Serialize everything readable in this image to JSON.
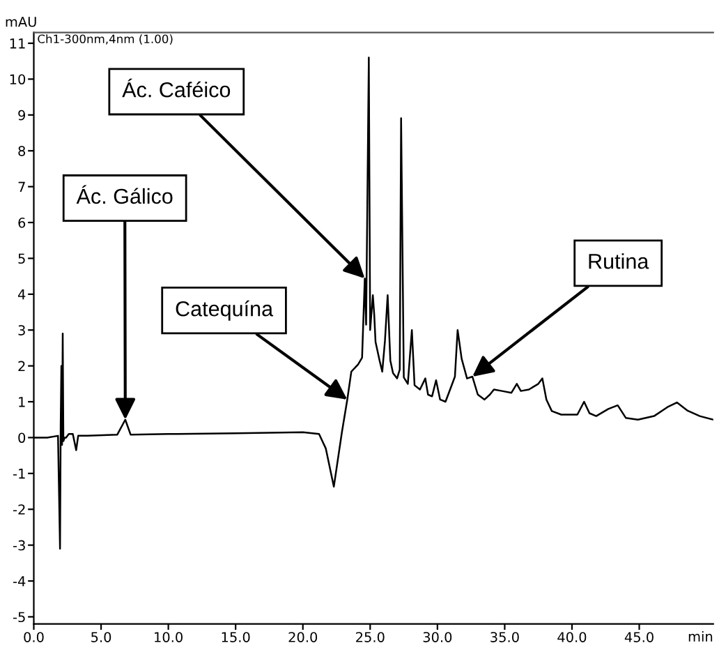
{
  "chart_data": {
    "type": "line",
    "xlabel": "min",
    "ylabel": "mAU",
    "annotations": [
      "Ch1-300nm,4nm (1.00)",
      {
        "text": "Ác. Caféico",
        "x": 24.6,
        "y": 4.44
      },
      {
        "text": "Ác. Gálico",
        "x": 6.8,
        "y": 0.5
      },
      {
        "text": "Catequína",
        "x": 23.3,
        "y": 1.06
      },
      {
        "text": "Rutina",
        "x": 32.6,
        "y": 1.7
      }
    ],
    "series": [
      {
        "color": "#000000",
        "x": [
          0,
          1.0,
          1.8,
          1.95,
          2.0,
          2.05,
          2.1,
          2.15,
          2.2,
          2.3,
          2.4,
          2.6,
          2.9,
          3.15,
          3.3,
          4.0,
          6.2,
          6.8,
          7.2,
          10.0,
          15.0,
          20.0,
          21.2,
          21.7,
          22.3,
          22.9,
          23.3,
          23.6,
          24.1,
          24.4,
          24.6,
          24.7,
          24.9,
          25.0,
          25.2,
          25.3,
          25.4,
          25.7,
          25.9,
          26.1,
          26.3,
          26.5,
          26.7,
          27.0,
          27.2,
          27.3,
          27.5,
          27.8,
          28.1,
          28.3,
          28.7,
          29.1,
          29.3,
          29.6,
          29.9,
          30.2,
          30.6,
          31.0,
          31.3,
          31.5,
          31.8,
          32.2,
          32.6,
          33.0,
          33.5,
          33.9,
          34.2,
          34.8,
          35.5,
          35.9,
          36.2,
          36.8,
          37.5,
          37.8,
          38.1,
          38.5,
          39.2,
          40.4,
          40.9,
          41.3,
          41.8,
          42.7,
          43.4,
          44.0,
          44.9,
          46.1,
          47.1,
          47.8,
          48.6,
          49.5,
          50.5
        ],
        "values": [
          0,
          0,
          0.05,
          -3.1,
          0.4,
          2.0,
          -0.2,
          2.9,
          -0.1,
          0.0,
          0.0,
          0.1,
          0.1,
          -0.35,
          0.05,
          0.05,
          0.08,
          0.5,
          0.08,
          0.1,
          0.12,
          0.15,
          0.1,
          -0.3,
          -1.37,
          0.15,
          1.06,
          1.84,
          2.04,
          2.23,
          4.44,
          3.15,
          10.6,
          3.0,
          3.97,
          3.45,
          2.67,
          2.15,
          1.84,
          2.7,
          3.97,
          2.15,
          1.8,
          1.65,
          1.9,
          8.91,
          1.68,
          1.5,
          3.0,
          1.46,
          1.34,
          1.65,
          1.2,
          1.15,
          1.6,
          1.06,
          1.0,
          1.4,
          1.7,
          3.0,
          2.2,
          1.65,
          1.7,
          1.2,
          1.06,
          1.2,
          1.34,
          1.3,
          1.25,
          1.5,
          1.3,
          1.34,
          1.5,
          1.65,
          1.06,
          0.74,
          0.64,
          0.64,
          1.0,
          0.68,
          0.6,
          0.8,
          0.9,
          0.55,
          0.5,
          0.6,
          0.85,
          0.98,
          0.75,
          0.6,
          0.5
        ]
      }
    ],
    "xlim": [
      0,
      50.5
    ],
    "ylim": [
      -5.2,
      11.3
    ],
    "xticks": [
      {
        "value": 0,
        "label": "0.0"
      },
      {
        "value": 5,
        "label": "5.0"
      },
      {
        "value": 10,
        "label": "10.0"
      },
      {
        "value": 15,
        "label": "15.0"
      },
      {
        "value": 20,
        "label": "20.0"
      },
      {
        "value": 25,
        "label": "25.0"
      },
      {
        "value": 30,
        "label": "30.0"
      },
      {
        "value": 35,
        "label": "35.0"
      },
      {
        "value": 40,
        "label": "40.0"
      },
      {
        "value": 45,
        "label": "45.0"
      }
    ],
    "yticks": [
      -5,
      -4,
      -3,
      -2,
      -1,
      0,
      1,
      2,
      3,
      4,
      5,
      6,
      7,
      8,
      9,
      10,
      11
    ],
    "grid": false,
    "legend": false,
    "marker": "none",
    "line_style": "solid"
  }
}
